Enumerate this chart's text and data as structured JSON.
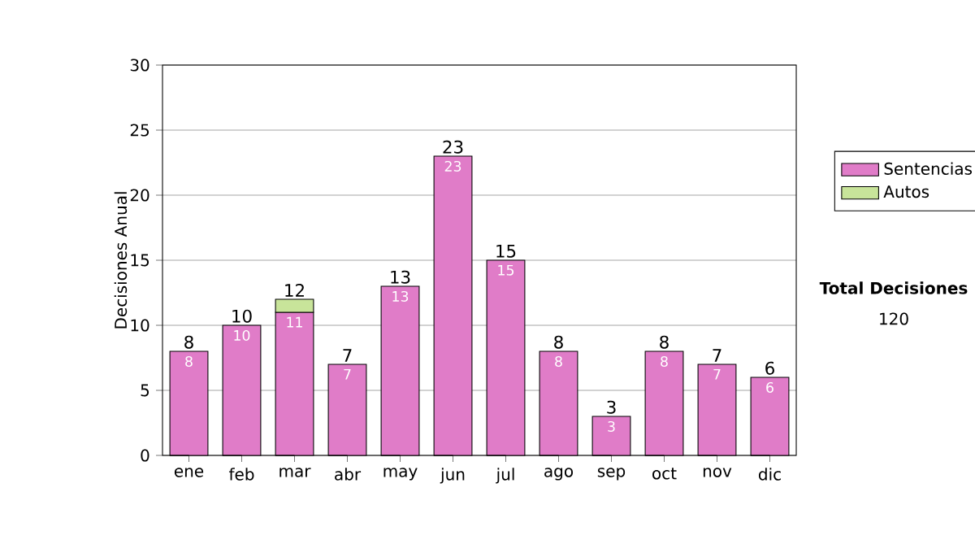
{
  "chart_data": {
    "type": "bar",
    "stacked": true,
    "ylabel": "Decisiones Anual",
    "categories": [
      "ene",
      "feb",
      "mar",
      "abr",
      "may",
      "jun",
      "jul",
      "ago",
      "sep",
      "oct",
      "nov",
      "dic"
    ],
    "series": [
      {
        "name": "Sentencias",
        "color": "#e07cc8",
        "values": [
          8,
          10,
          11,
          7,
          13,
          23,
          15,
          8,
          3,
          8,
          7,
          6
        ],
        "value_labels": [
          "8",
          "10",
          "11",
          "7",
          "13",
          "23",
          "15",
          "8",
          "3",
          "8",
          "7",
          "6"
        ]
      },
      {
        "name": "Autos",
        "color": "#c8e49a",
        "values": [
          null,
          null,
          1,
          null,
          null,
          null,
          null,
          null,
          null,
          null,
          null,
          null
        ]
      }
    ],
    "totals": [
      "8",
      "10",
      "12",
      "7",
      "13",
      "23",
      "15",
      "8",
      "3",
      "8",
      "7",
      "6"
    ],
    "ylim": [
      0,
      30
    ],
    "yticks": [
      0,
      5,
      10,
      15,
      20,
      25,
      30
    ],
    "grid": "y",
    "legend": "right",
    "annotations": [
      "Total Decisiones",
      "120"
    ]
  }
}
